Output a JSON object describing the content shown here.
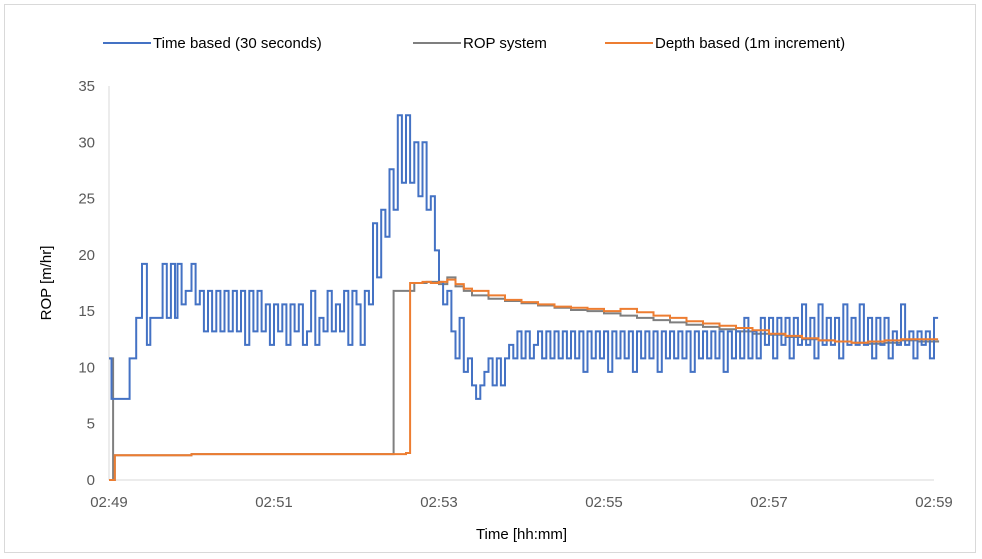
{
  "chart_data": {
    "type": "line",
    "xlabel": "Time [hh:mm]",
    "ylabel": "ROP [m/hr]",
    "x_unit": "minutes since 02:49",
    "xlim": [
      0,
      10
    ],
    "ylim": [
      0,
      35
    ],
    "x_ticks": [
      {
        "value": 0,
        "label": "02:49"
      },
      {
        "value": 2,
        "label": "02:51"
      },
      {
        "value": 4,
        "label": "02:53"
      },
      {
        "value": 6,
        "label": "02:55"
      },
      {
        "value": 8,
        "label": "02:57"
      },
      {
        "value": 10,
        "label": "02:59"
      }
    ],
    "y_ticks": [
      0,
      5,
      10,
      15,
      20,
      25,
      30,
      35
    ],
    "grid": false,
    "legend_position": "top",
    "series": [
      {
        "name": "Time based (30 seconds)",
        "color": "#4472C4",
        "interpolation": "step",
        "points": [
          [
            0.0,
            10.8
          ],
          [
            0.03,
            7.2
          ],
          [
            0.25,
            10.8
          ],
          [
            0.33,
            14.4
          ],
          [
            0.4,
            19.2
          ],
          [
            0.46,
            12.0
          ],
          [
            0.5,
            14.4
          ],
          [
            0.65,
            19.2
          ],
          [
            0.7,
            14.4
          ],
          [
            0.75,
            19.2
          ],
          [
            0.8,
            14.4
          ],
          [
            0.83,
            19.2
          ],
          [
            0.88,
            15.6
          ],
          [
            0.93,
            16.8
          ],
          [
            1.0,
            19.2
          ],
          [
            1.05,
            15.6
          ],
          [
            1.1,
            16.8
          ],
          [
            1.15,
            13.2
          ],
          [
            1.2,
            16.8
          ],
          [
            1.25,
            13.2
          ],
          [
            1.3,
            16.8
          ],
          [
            1.35,
            13.2
          ],
          [
            1.4,
            16.8
          ],
          [
            1.45,
            13.2
          ],
          [
            1.5,
            16.8
          ],
          [
            1.55,
            13.2
          ],
          [
            1.6,
            16.8
          ],
          [
            1.65,
            12.0
          ],
          [
            1.7,
            16.8
          ],
          [
            1.75,
            13.2
          ],
          [
            1.8,
            16.8
          ],
          [
            1.85,
            13.2
          ],
          [
            1.9,
            15.6
          ],
          [
            1.95,
            12.0
          ],
          [
            2.0,
            15.6
          ],
          [
            2.05,
            13.2
          ],
          [
            2.1,
            15.6
          ],
          [
            2.15,
            12.0
          ],
          [
            2.2,
            15.6
          ],
          [
            2.25,
            13.2
          ],
          [
            2.3,
            15.6
          ],
          [
            2.35,
            12.0
          ],
          [
            2.4,
            13.2
          ],
          [
            2.45,
            16.8
          ],
          [
            2.5,
            12.0
          ],
          [
            2.55,
            14.4
          ],
          [
            2.6,
            13.2
          ],
          [
            2.65,
            16.8
          ],
          [
            2.7,
            13.2
          ],
          [
            2.75,
            15.6
          ],
          [
            2.8,
            13.2
          ],
          [
            2.85,
            16.8
          ],
          [
            2.9,
            12.0
          ],
          [
            2.95,
            16.8
          ],
          [
            3.0,
            15.6
          ],
          [
            3.05,
            12.0
          ],
          [
            3.1,
            16.8
          ],
          [
            3.15,
            15.6
          ],
          [
            3.2,
            22.8
          ],
          [
            3.25,
            18.0
          ],
          [
            3.3,
            24.0
          ],
          [
            3.35,
            21.6
          ],
          [
            3.4,
            27.6
          ],
          [
            3.45,
            24.0
          ],
          [
            3.5,
            32.4
          ],
          [
            3.55,
            26.4
          ],
          [
            3.6,
            32.4
          ],
          [
            3.65,
            26.4
          ],
          [
            3.7,
            30.0
          ],
          [
            3.75,
            25.2
          ],
          [
            3.8,
            30.0
          ],
          [
            3.85,
            24.0
          ],
          [
            3.9,
            25.2
          ],
          [
            3.95,
            20.4
          ],
          [
            4.0,
            17.6
          ],
          [
            4.05,
            15.6
          ],
          [
            4.1,
            16.8
          ],
          [
            4.15,
            13.2
          ],
          [
            4.2,
            10.8
          ],
          [
            4.25,
            14.4
          ],
          [
            4.3,
            9.6
          ],
          [
            4.35,
            10.8
          ],
          [
            4.4,
            8.4
          ],
          [
            4.45,
            7.2
          ],
          [
            4.5,
            8.4
          ],
          [
            4.55,
            9.6
          ],
          [
            4.6,
            10.8
          ],
          [
            4.65,
            8.4
          ],
          [
            4.7,
            10.8
          ],
          [
            4.75,
            8.4
          ],
          [
            4.8,
            10.8
          ],
          [
            4.85,
            12.0
          ],
          [
            4.9,
            10.8
          ],
          [
            4.95,
            13.2
          ],
          [
            5.0,
            10.8
          ],
          [
            5.05,
            13.2
          ],
          [
            5.1,
            10.8
          ],
          [
            5.15,
            12.0
          ],
          [
            5.2,
            13.2
          ],
          [
            5.25,
            10.8
          ],
          [
            5.3,
            13.2
          ],
          [
            5.35,
            10.8
          ],
          [
            5.4,
            13.2
          ],
          [
            5.45,
            10.8
          ],
          [
            5.5,
            13.2
          ],
          [
            5.55,
            10.8
          ],
          [
            5.6,
            13.2
          ],
          [
            5.65,
            10.8
          ],
          [
            5.7,
            13.2
          ],
          [
            5.75,
            9.6
          ],
          [
            5.8,
            13.2
          ],
          [
            5.85,
            10.8
          ],
          [
            5.9,
            13.2
          ],
          [
            5.95,
            10.8
          ],
          [
            6.0,
            13.2
          ],
          [
            6.05,
            9.6
          ],
          [
            6.1,
            13.2
          ],
          [
            6.15,
            10.8
          ],
          [
            6.2,
            13.2
          ],
          [
            6.25,
            10.8
          ],
          [
            6.3,
            13.2
          ],
          [
            6.35,
            9.6
          ],
          [
            6.4,
            13.2
          ],
          [
            6.45,
            10.8
          ],
          [
            6.5,
            13.2
          ],
          [
            6.55,
            10.8
          ],
          [
            6.6,
            13.2
          ],
          [
            6.65,
            9.6
          ],
          [
            6.7,
            13.2
          ],
          [
            6.75,
            10.8
          ],
          [
            6.8,
            13.2
          ],
          [
            6.85,
            10.8
          ],
          [
            6.9,
            13.2
          ],
          [
            6.95,
            10.8
          ],
          [
            7.0,
            13.2
          ],
          [
            7.05,
            9.6
          ],
          [
            7.1,
            13.2
          ],
          [
            7.15,
            10.8
          ],
          [
            7.2,
            13.2
          ],
          [
            7.25,
            10.8
          ],
          [
            7.3,
            13.2
          ],
          [
            7.35,
            10.8
          ],
          [
            7.4,
            13.2
          ],
          [
            7.45,
            9.6
          ],
          [
            7.5,
            13.2
          ],
          [
            7.55,
            10.8
          ],
          [
            7.6,
            13.2
          ],
          [
            7.65,
            10.8
          ],
          [
            7.7,
            14.4
          ],
          [
            7.75,
            10.8
          ],
          [
            7.8,
            13.2
          ],
          [
            7.85,
            10.8
          ],
          [
            7.9,
            14.4
          ],
          [
            7.95,
            12.0
          ],
          [
            8.0,
            14.4
          ],
          [
            8.05,
            10.8
          ],
          [
            8.1,
            14.4
          ],
          [
            8.15,
            12.0
          ],
          [
            8.2,
            14.4
          ],
          [
            8.25,
            10.8
          ],
          [
            8.3,
            14.4
          ],
          [
            8.35,
            12.0
          ],
          [
            8.4,
            15.6
          ],
          [
            8.45,
            12.0
          ],
          [
            8.5,
            14.4
          ],
          [
            8.55,
            10.8
          ],
          [
            8.6,
            15.6
          ],
          [
            8.65,
            12.0
          ],
          [
            8.7,
            14.4
          ],
          [
            8.75,
            12.0
          ],
          [
            8.8,
            14.4
          ],
          [
            8.85,
            10.8
          ],
          [
            8.9,
            15.6
          ],
          [
            8.95,
            12.0
          ],
          [
            9.0,
            14.4
          ],
          [
            9.05,
            12.0
          ],
          [
            9.1,
            15.6
          ],
          [
            9.15,
            12.0
          ],
          [
            9.2,
            14.4
          ],
          [
            9.25,
            10.8
          ],
          [
            9.3,
            14.4
          ],
          [
            9.35,
            12.0
          ],
          [
            9.4,
            14.4
          ],
          [
            9.45,
            10.8
          ],
          [
            9.5,
            13.2
          ],
          [
            9.55,
            12.0
          ],
          [
            9.6,
            15.6
          ],
          [
            9.65,
            12.0
          ],
          [
            9.7,
            13.2
          ],
          [
            9.75,
            10.8
          ],
          [
            9.8,
            13.2
          ],
          [
            9.85,
            12.0
          ],
          [
            9.9,
            13.2
          ],
          [
            9.95,
            10.8
          ],
          [
            10.0,
            14.4
          ],
          [
            10.05,
            14.4
          ]
        ]
      },
      {
        "name": "ROP system",
        "color": "#7F7F7F",
        "interpolation": "step",
        "points": [
          [
            0.0,
            10.8
          ],
          [
            0.03,
            10.8
          ],
          [
            0.05,
            0.0
          ],
          [
            0.07,
            2.2
          ],
          [
            1.0,
            2.3
          ],
          [
            2.0,
            2.3
          ],
          [
            2.9,
            2.3
          ],
          [
            3.4,
            2.3
          ],
          [
            3.45,
            16.8
          ],
          [
            3.7,
            17.5
          ],
          [
            3.85,
            17.6
          ],
          [
            4.0,
            17.4
          ],
          [
            4.1,
            18.0
          ],
          [
            4.2,
            17.2
          ],
          [
            4.3,
            16.8
          ],
          [
            4.4,
            16.4
          ],
          [
            4.6,
            16.1
          ],
          [
            4.8,
            15.9
          ],
          [
            5.0,
            15.7
          ],
          [
            5.2,
            15.5
          ],
          [
            5.4,
            15.3
          ],
          [
            5.6,
            15.1
          ],
          [
            5.8,
            15.0
          ],
          [
            6.0,
            14.8
          ],
          [
            6.2,
            14.6
          ],
          [
            6.4,
            14.4
          ],
          [
            6.6,
            14.2
          ],
          [
            6.8,
            14.0
          ],
          [
            7.0,
            13.8
          ],
          [
            7.2,
            13.6
          ],
          [
            7.4,
            13.4
          ],
          [
            7.6,
            13.2
          ],
          [
            7.8,
            13.0
          ],
          [
            8.0,
            12.9
          ],
          [
            8.2,
            12.7
          ],
          [
            8.4,
            12.5
          ],
          [
            8.6,
            12.4
          ],
          [
            8.8,
            12.3
          ],
          [
            9.0,
            12.2
          ],
          [
            9.2,
            12.1
          ],
          [
            9.4,
            12.2
          ],
          [
            9.6,
            12.4
          ],
          [
            9.8,
            12.3
          ],
          [
            10.05,
            12.4
          ]
        ]
      },
      {
        "name": "Depth based (1m increment)",
        "color": "#ED7D31",
        "interpolation": "step",
        "points": [
          [
            0.0,
            0.0
          ],
          [
            0.05,
            0.0
          ],
          [
            0.07,
            2.2
          ],
          [
            1.0,
            2.3
          ],
          [
            2.0,
            2.3
          ],
          [
            2.9,
            2.3
          ],
          [
            3.6,
            2.4
          ],
          [
            3.65,
            17.5
          ],
          [
            3.8,
            17.6
          ],
          [
            3.9,
            17.5
          ],
          [
            4.0,
            17.6
          ],
          [
            4.1,
            17.8
          ],
          [
            4.2,
            17.4
          ],
          [
            4.3,
            17.0
          ],
          [
            4.4,
            16.8
          ],
          [
            4.6,
            16.4
          ],
          [
            4.8,
            16.0
          ],
          [
            5.0,
            15.8
          ],
          [
            5.2,
            15.6
          ],
          [
            5.4,
            15.4
          ],
          [
            5.6,
            15.3
          ],
          [
            5.8,
            15.2
          ],
          [
            6.0,
            15.0
          ],
          [
            6.2,
            15.2
          ],
          [
            6.4,
            14.9
          ],
          [
            6.6,
            14.6
          ],
          [
            6.8,
            14.4
          ],
          [
            7.0,
            14.1
          ],
          [
            7.2,
            13.9
          ],
          [
            7.4,
            13.7
          ],
          [
            7.6,
            13.5
          ],
          [
            7.8,
            13.3
          ],
          [
            8.0,
            13.0
          ],
          [
            8.2,
            12.8
          ],
          [
            8.4,
            12.6
          ],
          [
            8.6,
            12.4
          ],
          [
            8.8,
            12.3
          ],
          [
            9.0,
            12.2
          ],
          [
            9.2,
            12.3
          ],
          [
            9.4,
            12.4
          ],
          [
            9.6,
            12.5
          ],
          [
            9.8,
            12.5
          ],
          [
            10.05,
            12.5
          ]
        ]
      }
    ]
  }
}
